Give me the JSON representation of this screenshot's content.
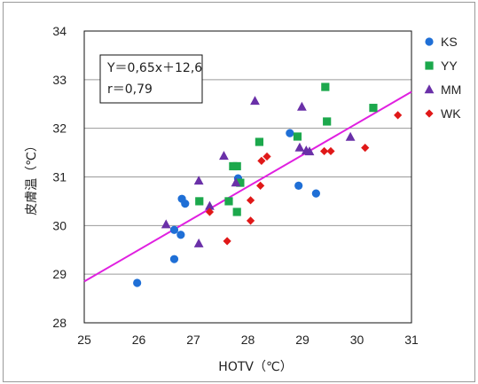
{
  "chart_data": {
    "type": "scatter",
    "xlabel": "HOTV（℃）",
    "ylabel": "皮膚温（℃）",
    "xlim": [
      25,
      31
    ],
    "ylim": [
      28,
      34
    ],
    "xticks": [
      25,
      26,
      27,
      28,
      29,
      30,
      31
    ],
    "yticks": [
      28,
      29,
      30,
      31,
      32,
      33,
      34
    ],
    "grid": "horizontal",
    "legend_position": "right",
    "annotation": {
      "equation": "Y＝0,65x＋12,6",
      "r": "r＝0,79"
    },
    "regression": {
      "slope": 0.65,
      "intercept": 12.6,
      "x_range": [
        25,
        31
      ],
      "color": "#e020e0"
    },
    "series": [
      {
        "name": "KS",
        "marker": "circle",
        "color": "#1f6fd6",
        "points": [
          [
            25.97,
            28.82
          ],
          [
            26.65,
            29.31
          ],
          [
            26.65,
            29.91
          ],
          [
            26.77,
            29.81
          ],
          [
            26.79,
            30.55
          ],
          [
            26.85,
            30.45
          ],
          [
            27.82,
            30.97
          ],
          [
            28.77,
            31.9
          ],
          [
            28.93,
            30.82
          ],
          [
            29.25,
            30.66
          ]
        ]
      },
      {
        "name": "YY",
        "marker": "square",
        "color": "#1ca84c",
        "points": [
          [
            27.11,
            30.5
          ],
          [
            27.65,
            30.5
          ],
          [
            27.73,
            31.22
          ],
          [
            27.8,
            31.22
          ],
          [
            27.8,
            30.28
          ],
          [
            27.86,
            30.88
          ],
          [
            28.21,
            31.72
          ],
          [
            28.91,
            31.83
          ],
          [
            29.42,
            32.85
          ],
          [
            29.45,
            32.14
          ],
          [
            30.3,
            32.42
          ]
        ]
      },
      {
        "name": "MM",
        "marker": "triangle",
        "color": "#6a30a8",
        "points": [
          [
            26.5,
            30.02
          ],
          [
            27.1,
            30.92
          ],
          [
            27.1,
            29.63
          ],
          [
            27.3,
            30.4
          ],
          [
            27.56,
            31.43
          ],
          [
            27.78,
            30.88
          ],
          [
            28.13,
            32.56
          ],
          [
            28.95,
            31.6
          ],
          [
            28.99,
            32.44
          ],
          [
            29.07,
            31.54
          ],
          [
            29.13,
            31.52
          ],
          [
            29.88,
            31.82
          ]
        ]
      },
      {
        "name": "WK",
        "marker": "diamond",
        "color": "#e01818",
        "points": [
          [
            27.3,
            30.28
          ],
          [
            27.62,
            29.68
          ],
          [
            28.05,
            30.52
          ],
          [
            28.05,
            30.1
          ],
          [
            28.23,
            30.82
          ],
          [
            28.25,
            31.33
          ],
          [
            28.35,
            31.42
          ],
          [
            29.4,
            31.53
          ],
          [
            29.52,
            31.53
          ],
          [
            30.15,
            31.6
          ],
          [
            30.75,
            32.27
          ]
        ]
      }
    ]
  }
}
